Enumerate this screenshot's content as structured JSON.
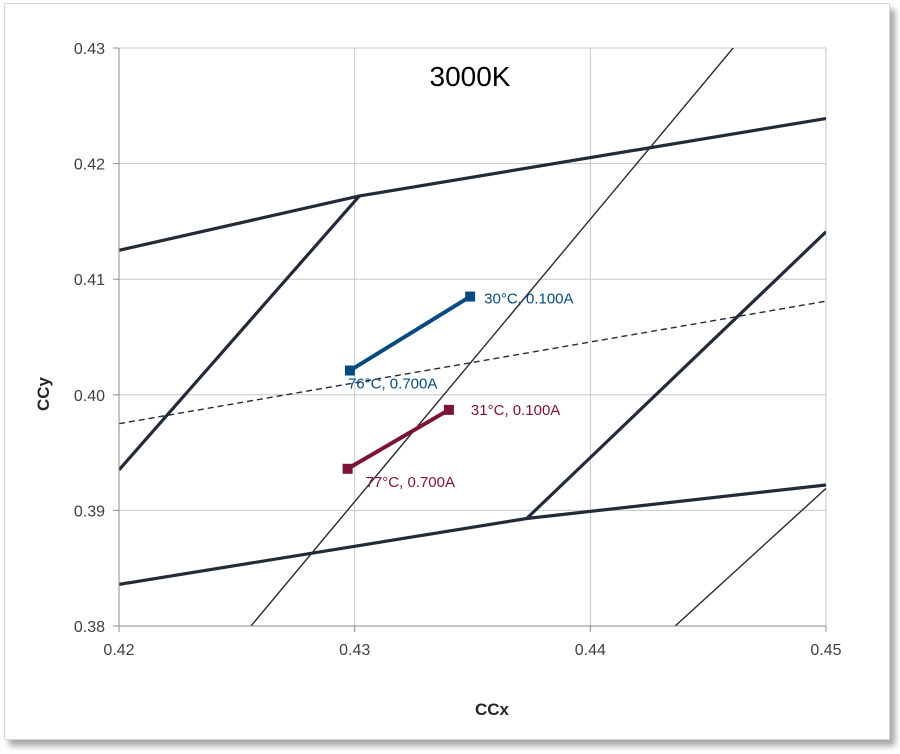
{
  "chart_data": {
    "type": "line",
    "title": "3000K",
    "xlabel": "CCx",
    "ylabel": "CCy",
    "xlim": [
      0.42,
      0.45
    ],
    "ylim": [
      0.38,
      0.43
    ],
    "xticks": [
      "0.42",
      "0.43",
      "0.44",
      "0.45"
    ],
    "yticks": [
      "0.38",
      "0.39",
      "0.40",
      "0.41",
      "0.42",
      "0.43"
    ],
    "grid": true,
    "reference_lines": [
      {
        "style": "thick",
        "points": [
          [
            0.42,
            0.4125
          ],
          [
            0.4302,
            0.4172
          ],
          [
            0.45,
            0.4239
          ]
        ]
      },
      {
        "style": "thick",
        "points": [
          [
            0.42,
            0.3836
          ],
          [
            0.4373,
            0.3893
          ],
          [
            0.45,
            0.3922
          ]
        ]
      },
      {
        "style": "thick",
        "points": [
          [
            0.42,
            0.3935
          ],
          [
            0.4302,
            0.4172
          ]
        ]
      },
      {
        "style": "thick",
        "points": [
          [
            0.4373,
            0.3893
          ],
          [
            0.45,
            0.4141
          ]
        ]
      },
      {
        "style": "thin",
        "points": [
          [
            0.4256,
            0.38
          ],
          [
            0.4461,
            0.4301
          ]
        ]
      },
      {
        "style": "thin",
        "points": [
          [
            0.4436,
            0.38
          ],
          [
            0.45,
            0.3919
          ]
        ]
      },
      {
        "style": "dashed",
        "points": [
          [
            0.42,
            0.3975
          ],
          [
            0.45,
            0.4081
          ]
        ]
      }
    ],
    "series": [
      {
        "color": "#064a7e",
        "points": [
          [
            0.4349,
            0.4085
          ],
          [
            0.4298,
            0.4021
          ]
        ],
        "labels": [
          "30°C, 0.100A",
          "76°C, 0.700A"
        ]
      },
      {
        "color": "#7d1238",
        "points": [
          [
            0.434,
            0.3987
          ],
          [
            0.4297,
            0.3936
          ]
        ],
        "labels": [
          "31°C, 0.100A",
          "77°C, 0.700A"
        ]
      }
    ]
  }
}
